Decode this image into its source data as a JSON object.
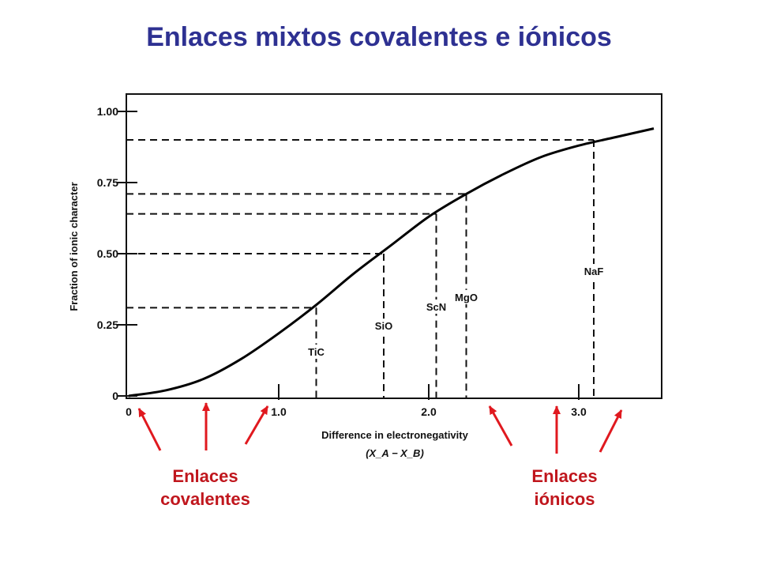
{
  "slide": {
    "title": "Enlaces mixtos covalentes e iónicos"
  },
  "callouts": {
    "covalent": {
      "line1": "Enlaces",
      "line2": "covalentes"
    },
    "ionic": {
      "line1": "Enlaces",
      "line2": "iónicos"
    },
    "arrow_color": "#e0191f",
    "text_color": "#c0161d"
  },
  "chart_data": {
    "type": "line",
    "title": "",
    "xlabel": "Difference in electronegativity",
    "xlabel_formula": "(X_A − X_B)",
    "ylabel": "Fraction of ionic character",
    "xlim": [
      0,
      3.5
    ],
    "ylim": [
      0,
      1.0
    ],
    "x_ticks": [
      {
        "value": 0,
        "label": "0"
      },
      {
        "value": 1.0,
        "label": "1.0"
      },
      {
        "value": 2.0,
        "label": "2.0"
      },
      {
        "value": 3.0,
        "label": "3.0"
      }
    ],
    "y_ticks": [
      {
        "value": 0,
        "label": "0"
      },
      {
        "value": 0.25,
        "label": "0.25"
      },
      {
        "value": 0.5,
        "label": "0.50"
      },
      {
        "value": 0.75,
        "label": "0.75"
      },
      {
        "value": 1.0,
        "label": "1.00"
      }
    ],
    "series": [
      {
        "x": [
          0,
          0.25,
          0.5,
          0.75,
          1.0,
          1.25,
          1.5,
          1.75,
          2.0,
          2.25,
          2.5,
          2.75,
          3.0,
          3.25,
          3.5
        ],
        "y": [
          0,
          0.02,
          0.06,
          0.13,
          0.22,
          0.32,
          0.43,
          0.53,
          0.63,
          0.71,
          0.78,
          0.84,
          0.88,
          0.91,
          0.94
        ]
      }
    ],
    "annotations": [
      {
        "label": "TiC",
        "x": 1.25,
        "y": 0.31
      },
      {
        "label": "SiO",
        "x": 1.7,
        "y": 0.5
      },
      {
        "label": "ScN",
        "x": 2.05,
        "y": 0.64
      },
      {
        "label": "MgO",
        "x": 2.25,
        "y": 0.71
      },
      {
        "label": "NaF",
        "x": 3.1,
        "y": 0.9
      }
    ],
    "grid": false,
    "line_color": "#000000"
  }
}
